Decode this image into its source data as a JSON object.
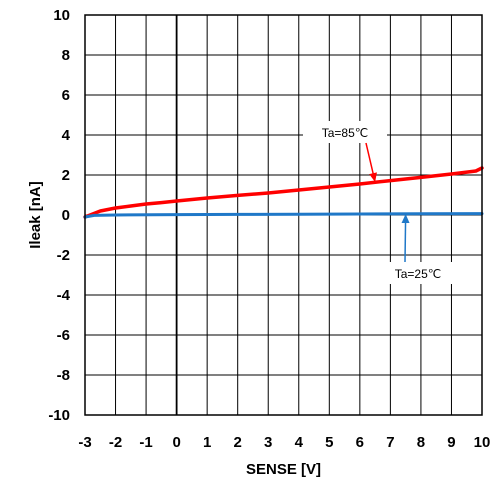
{
  "chart_data": {
    "type": "line",
    "xlabel": "SENSE [V]",
    "ylabel": "Ileak [nA]",
    "xlim": [
      -3,
      10
    ],
    "ylim": [
      -10,
      10
    ],
    "xticks": [
      -3,
      -2,
      -1,
      0,
      1,
      2,
      3,
      4,
      5,
      6,
      7,
      8,
      9,
      10
    ],
    "yticks": [
      -10,
      -8,
      -6,
      -4,
      -2,
      0,
      2,
      4,
      6,
      8,
      10
    ],
    "grid": true,
    "series": [
      {
        "name": "Ta=85℃",
        "color": "#ff0000",
        "x": [
          -3,
          -2.5,
          -2,
          -1.5,
          -1,
          -0.5,
          0,
          1,
          2,
          3,
          4,
          5,
          6,
          7,
          8,
          9,
          9.8,
          10
        ],
        "y": [
          -0.1,
          0.2,
          0.35,
          0.45,
          0.55,
          0.62,
          0.7,
          0.85,
          0.98,
          1.1,
          1.25,
          1.4,
          1.55,
          1.72,
          1.88,
          2.05,
          2.2,
          2.35
        ]
      },
      {
        "name": "Ta=25℃",
        "color": "#1f78c8",
        "x": [
          -3,
          -2.7,
          -2,
          0,
          2,
          4,
          6,
          8,
          10
        ],
        "y": [
          -0.1,
          -0.02,
          0.0,
          0.02,
          0.03,
          0.04,
          0.05,
          0.06,
          0.07
        ]
      }
    ],
    "annotations": [
      {
        "text": "Ta=85℃",
        "series": 0,
        "arrow_to": [
          6.5,
          1.65
        ]
      },
      {
        "text": "Ta=25℃",
        "series": 1,
        "arrow_to": [
          7.5,
          0.05
        ]
      }
    ]
  }
}
